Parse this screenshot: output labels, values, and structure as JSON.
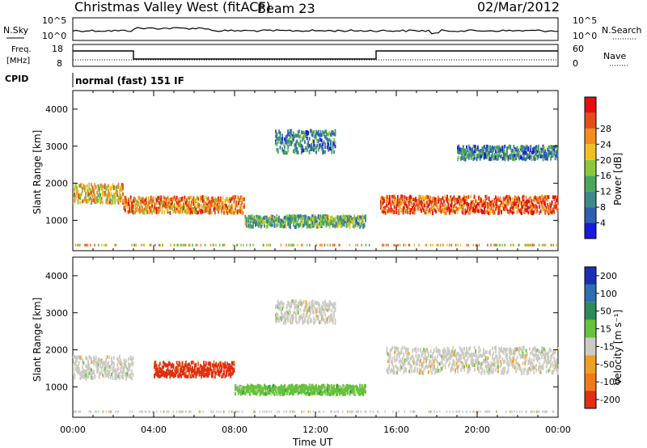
{
  "header": {
    "station": "Christmas Valley West (fitACF)",
    "beam": "Beam 23",
    "date": "02/Mar/2012"
  },
  "noise_panel": {
    "left_label": "N.Sky",
    "right_label": "N.Search",
    "left_ticks": [
      "10^5",
      "10^0"
    ],
    "right_ticks": [
      "10^5",
      "10^0"
    ]
  },
  "freq_panel": {
    "left_label_1": "Freq.",
    "left_label_2": "[MHz]",
    "right_label": "Nave",
    "left_ticks": [
      "18",
      "8"
    ],
    "right_ticks": [
      "60",
      "0"
    ]
  },
  "cpid": {
    "label": "CPID",
    "value": "normal (fast) 151 IF"
  },
  "power_colorbar": {
    "title": "Power [dB]",
    "ticks": [
      "4",
      "8",
      "12",
      "16",
      "20",
      "24",
      "28"
    ],
    "colors": [
      "#1a1adb",
      "#2f62b0",
      "#3e8a8a",
      "#48a85a",
      "#8dc83a",
      "#f0c020",
      "#f28c1e",
      "#e84b1a",
      "#e01010"
    ]
  },
  "velocity_colorbar": {
    "title": "Velocity [m s⁻¹]",
    "ticks": [
      "200",
      "100",
      "50",
      "15",
      "-15",
      "-50",
      "-100",
      "-200"
    ],
    "colors": [
      "#1b2fb5",
      "#2f6fb0",
      "#2f8a5a",
      "#66c23a",
      "#cccbc3",
      "#f0a020",
      "#f07a18",
      "#e03010"
    ]
  },
  "chart_data": [
    {
      "type": "heatmap",
      "name": "power",
      "ylabel": "Slant Range [km]",
      "xlabel": "Time UT",
      "x_ticks": [
        "00:00",
        "04:00",
        "08:00",
        "12:00",
        "16:00",
        "20:00",
        "00:00"
      ],
      "y_ticks": [
        "1000",
        "2000",
        "3000",
        "4000"
      ],
      "ylim": [
        180,
        4500
      ],
      "xlim_hours": [
        0,
        24
      ],
      "echo_bands": [
        {
          "t_start": 0.0,
          "t_end": 2.5,
          "range_center": 1700,
          "half_width": 250,
          "level": 20
        },
        {
          "t_start": 2.5,
          "t_end": 8.5,
          "range_center": 1400,
          "half_width": 220,
          "level": 24
        },
        {
          "t_start": 8.5,
          "t_end": 14.5,
          "range_center": 950,
          "half_width": 150,
          "level": 12
        },
        {
          "t_start": 10.0,
          "t_end": 13.0,
          "range_center": 3100,
          "half_width": 300,
          "level": 8
        },
        {
          "t_start": 15.2,
          "t_end": 24.0,
          "range_center": 1400,
          "half_width": 230,
          "level": 26
        },
        {
          "t_start": 19.0,
          "t_end": 24.0,
          "range_center": 2800,
          "half_width": 180,
          "level": 6
        }
      ]
    },
    {
      "type": "heatmap",
      "name": "velocity",
      "ylabel": "Slant Range [km]",
      "xlabel": "Time UT",
      "x_ticks": [
        "00:00",
        "04:00",
        "08:00",
        "12:00",
        "16:00",
        "20:00",
        "00:00"
      ],
      "y_ticks": [
        "1000",
        "2000",
        "3000",
        "4000"
      ],
      "ylim": [
        180,
        4500
      ],
      "xlim_hours": [
        0,
        24
      ],
      "echo_bands": [
        {
          "t_start": 0.0,
          "t_end": 3.0,
          "range_center": 1500,
          "half_width": 300,
          "level": 0
        },
        {
          "t_start": 4.0,
          "t_end": 8.0,
          "range_center": 1450,
          "half_width": 200,
          "level": -150
        },
        {
          "t_start": 8.0,
          "t_end": 14.5,
          "range_center": 900,
          "half_width": 120,
          "level": 40
        },
        {
          "t_start": 10.0,
          "t_end": 13.0,
          "range_center": 3000,
          "half_width": 300,
          "level": 0
        },
        {
          "t_start": 15.5,
          "t_end": 24.0,
          "range_center": 1700,
          "half_width": 350,
          "level": 0
        }
      ]
    }
  ]
}
